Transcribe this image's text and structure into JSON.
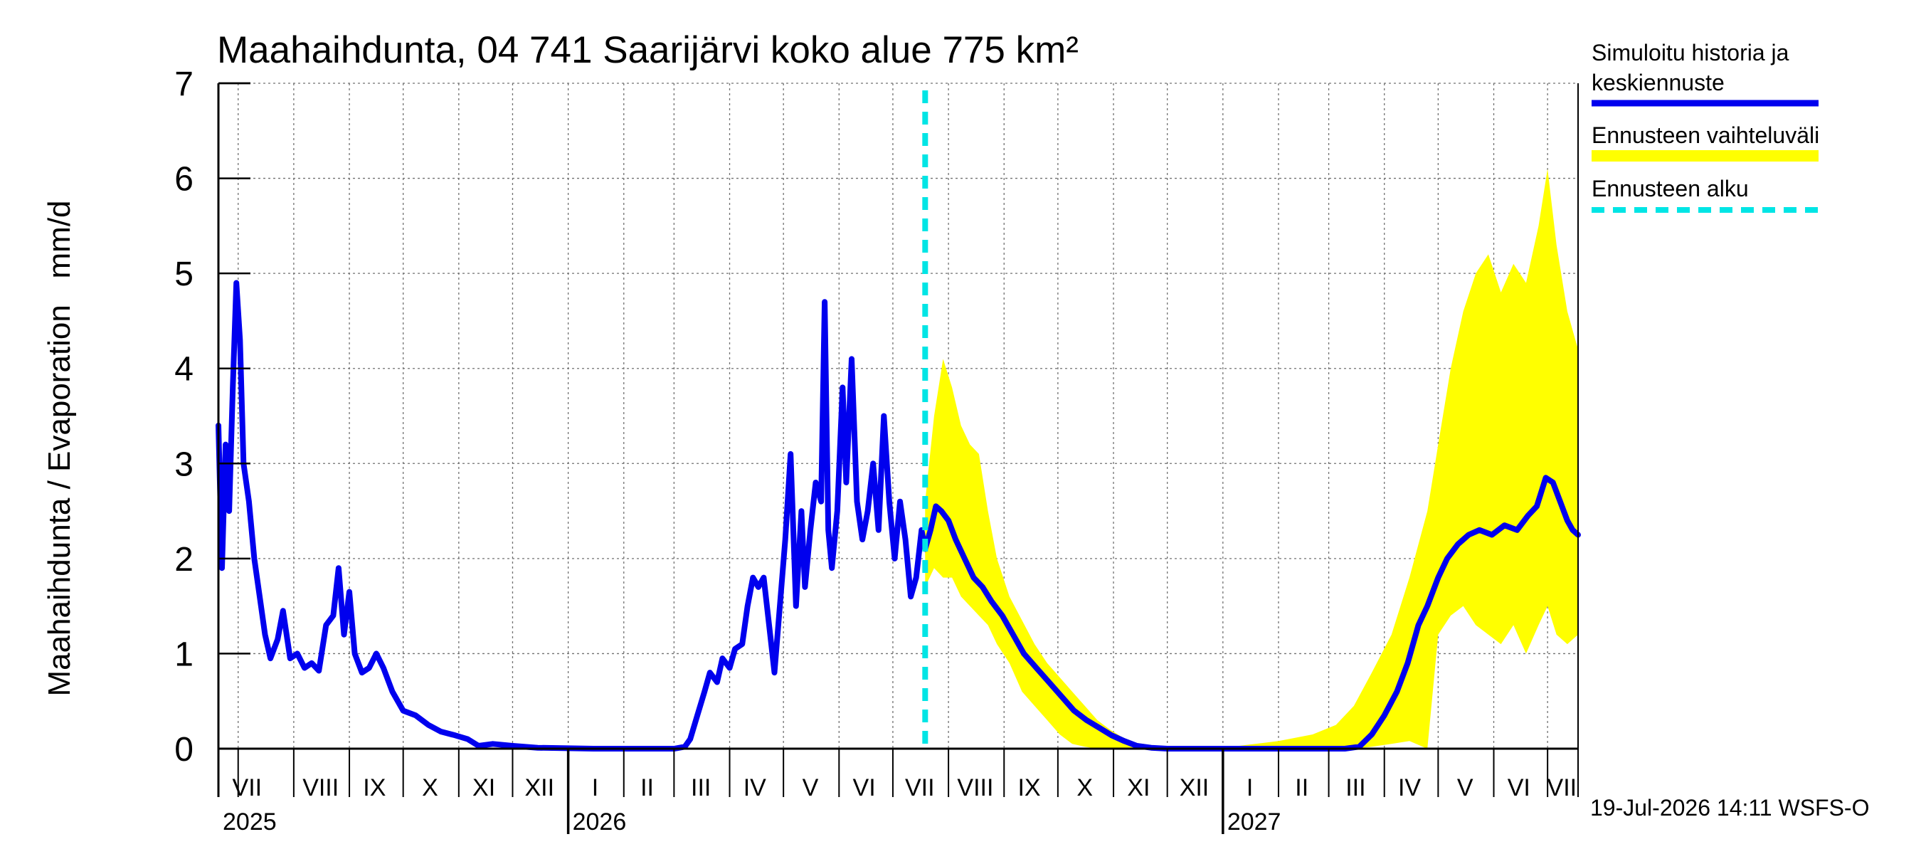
{
  "chart_data": {
    "type": "line",
    "title": "Maahaihdunta, 04 741 Saarijärvi koko alue 775 km²",
    "ylabel": "Maahaihdunta / Evaporation   mm/d",
    "ylim": [
      0,
      7
    ],
    "yticks": [
      "0",
      "1",
      "2",
      "3",
      "4",
      "5",
      "6",
      "7"
    ],
    "xlim": [
      "2025-06-20",
      "2027-07-18"
    ],
    "grid": true,
    "forecast_start": "2026-07-19",
    "months": [
      {
        "label": "VII",
        "mid": "2025-07-06"
      },
      {
        "label": "VIII",
        "mid": "2025-08-16"
      },
      {
        "label": "IX",
        "mid": "2025-09-15"
      },
      {
        "label": "X",
        "mid": "2025-10-16"
      },
      {
        "label": "XI",
        "mid": "2025-11-15"
      },
      {
        "label": "XII",
        "mid": "2025-12-16"
      },
      {
        "label": "I",
        "mid": "2026-01-16"
      },
      {
        "label": "II",
        "mid": "2026-02-14"
      },
      {
        "label": "III",
        "mid": "2026-03-16"
      },
      {
        "label": "IV",
        "mid": "2026-04-15"
      },
      {
        "label": "V",
        "mid": "2026-05-16"
      },
      {
        "label": "VI",
        "mid": "2026-06-15"
      },
      {
        "label": "VII",
        "mid": "2026-07-16"
      },
      {
        "label": "VIII",
        "mid": "2026-08-16"
      },
      {
        "label": "IX",
        "mid": "2026-09-15"
      },
      {
        "label": "X",
        "mid": "2026-10-16"
      },
      {
        "label": "XI",
        "mid": "2026-11-15"
      },
      {
        "label": "XII",
        "mid": "2026-12-16"
      },
      {
        "label": "I",
        "mid": "2027-01-16"
      },
      {
        "label": "II",
        "mid": "2027-02-14"
      },
      {
        "label": "III",
        "mid": "2027-03-16"
      },
      {
        "label": "IV",
        "mid": "2027-04-15"
      },
      {
        "label": "V",
        "mid": "2027-05-16"
      },
      {
        "label": "VI",
        "mid": "2027-06-15"
      },
      {
        "label": "VII",
        "mid": "2027-07-09"
      }
    ],
    "month_boundaries": [
      "2025-07-01",
      "2025-08-01",
      "2025-09-01",
      "2025-10-01",
      "2025-11-01",
      "2025-12-01",
      "2026-01-01",
      "2026-02-01",
      "2026-03-01",
      "2026-04-01",
      "2026-05-01",
      "2026-06-01",
      "2026-07-01",
      "2026-08-01",
      "2026-09-01",
      "2026-10-01",
      "2026-11-01",
      "2026-12-01",
      "2027-01-01",
      "2027-02-01",
      "2027-03-01",
      "2027-04-01",
      "2027-05-01",
      "2027-06-01",
      "2027-07-01"
    ],
    "years": [
      {
        "label": "2025",
        "date": "2025-06-20"
      },
      {
        "label": "2026",
        "date": "2026-01-01"
      },
      {
        "label": "2027",
        "date": "2027-01-01"
      }
    ],
    "series": [
      {
        "name": "Simuloitu historia ja keskiennuste",
        "color": "#0000ee",
        "points": [
          [
            "2025-06-20",
            3.4
          ],
          [
            "2025-06-22",
            1.9
          ],
          [
            "2025-06-24",
            3.2
          ],
          [
            "2025-06-26",
            2.5
          ],
          [
            "2025-06-28",
            3.8
          ],
          [
            "2025-06-30",
            4.9
          ],
          [
            "2025-07-02",
            4.3
          ],
          [
            "2025-07-04",
            3.0
          ],
          [
            "2025-07-07",
            2.6
          ],
          [
            "2025-07-10",
            2.0
          ],
          [
            "2025-07-13",
            1.6
          ],
          [
            "2025-07-16",
            1.2
          ],
          [
            "2025-07-19",
            0.95
          ],
          [
            "2025-07-23",
            1.15
          ],
          [
            "2025-07-26",
            1.45
          ],
          [
            "2025-07-30",
            0.95
          ],
          [
            "2025-08-03",
            1.0
          ],
          [
            "2025-08-07",
            0.85
          ],
          [
            "2025-08-11",
            0.9
          ],
          [
            "2025-08-15",
            0.82
          ],
          [
            "2025-08-19",
            1.3
          ],
          [
            "2025-08-23",
            1.4
          ],
          [
            "2025-08-26",
            1.9
          ],
          [
            "2025-08-29",
            1.2
          ],
          [
            "2025-09-01",
            1.65
          ],
          [
            "2025-09-04",
            1.0
          ],
          [
            "2025-09-08",
            0.8
          ],
          [
            "2025-09-12",
            0.85
          ],
          [
            "2025-09-16",
            1.0
          ],
          [
            "2025-09-20",
            0.85
          ],
          [
            "2025-09-25",
            0.6
          ],
          [
            "2025-10-01",
            0.4
          ],
          [
            "2025-10-08",
            0.35
          ],
          [
            "2025-10-15",
            0.25
          ],
          [
            "2025-10-22",
            0.18
          ],
          [
            "2025-10-30",
            0.14
          ],
          [
            "2025-11-06",
            0.1
          ],
          [
            "2025-11-12",
            0.03
          ],
          [
            "2025-11-20",
            0.05
          ],
          [
            "2025-12-01",
            0.03
          ],
          [
            "2025-12-15",
            0.01
          ],
          [
            "2026-01-15",
            0.0
          ],
          [
            "2026-02-15",
            0.0
          ],
          [
            "2026-03-01",
            0.0
          ],
          [
            "2026-03-07",
            0.02
          ],
          [
            "2026-03-10",
            0.1
          ],
          [
            "2026-03-14",
            0.35
          ],
          [
            "2026-03-18",
            0.6
          ],
          [
            "2026-03-21",
            0.8
          ],
          [
            "2026-03-25",
            0.7
          ],
          [
            "2026-03-28",
            0.95
          ],
          [
            "2026-04-01",
            0.85
          ],
          [
            "2026-04-04",
            1.05
          ],
          [
            "2026-04-08",
            1.1
          ],
          [
            "2026-04-11",
            1.5
          ],
          [
            "2026-04-14",
            1.8
          ],
          [
            "2026-04-17",
            1.7
          ],
          [
            "2026-04-20",
            1.8
          ],
          [
            "2026-04-23",
            1.3
          ],
          [
            "2026-04-26",
            0.8
          ],
          [
            "2026-04-29",
            1.5
          ],
          [
            "2026-05-02",
            2.2
          ],
          [
            "2026-05-05",
            3.1
          ],
          [
            "2026-05-08",
            1.5
          ],
          [
            "2026-05-11",
            2.5
          ],
          [
            "2026-05-13",
            1.7
          ],
          [
            "2026-05-16",
            2.3
          ],
          [
            "2026-05-19",
            2.8
          ],
          [
            "2026-05-22",
            2.6
          ],
          [
            "2026-05-24",
            4.7
          ],
          [
            "2026-05-26",
            2.3
          ],
          [
            "2026-05-28",
            1.9
          ],
          [
            "2026-05-31",
            2.5
          ],
          [
            "2026-06-03",
            3.8
          ],
          [
            "2026-06-05",
            2.8
          ],
          [
            "2026-06-08",
            4.1
          ],
          [
            "2026-06-11",
            2.6
          ],
          [
            "2026-06-14",
            2.2
          ],
          [
            "2026-06-17",
            2.5
          ],
          [
            "2026-06-20",
            3.0
          ],
          [
            "2026-06-23",
            2.3
          ],
          [
            "2026-06-26",
            3.5
          ],
          [
            "2026-06-29",
            2.6
          ],
          [
            "2026-07-02",
            2.0
          ],
          [
            "2026-07-05",
            2.6
          ],
          [
            "2026-07-08",
            2.2
          ],
          [
            "2026-07-11",
            1.6
          ],
          [
            "2026-07-14",
            1.8
          ],
          [
            "2026-07-17",
            2.3
          ],
          [
            "2026-07-19",
            2.1
          ],
          [
            "2026-07-22",
            2.3
          ],
          [
            "2026-07-25",
            2.55
          ],
          [
            "2026-07-28",
            2.5
          ],
          [
            "2026-08-01",
            2.4
          ],
          [
            "2026-08-05",
            2.2
          ],
          [
            "2026-08-10",
            2.0
          ],
          [
            "2026-08-15",
            1.8
          ],
          [
            "2026-08-20",
            1.7
          ],
          [
            "2026-08-25",
            1.55
          ],
          [
            "2026-08-31",
            1.4
          ],
          [
            "2026-09-06",
            1.2
          ],
          [
            "2026-09-12",
            1.0
          ],
          [
            "2026-09-19",
            0.85
          ],
          [
            "2026-09-26",
            0.7
          ],
          [
            "2026-10-03",
            0.55
          ],
          [
            "2026-10-10",
            0.4
          ],
          [
            "2026-10-17",
            0.3
          ],
          [
            "2026-10-24",
            0.22
          ],
          [
            "2026-10-31",
            0.14
          ],
          [
            "2026-11-07",
            0.08
          ],
          [
            "2026-11-14",
            0.03
          ],
          [
            "2026-11-22",
            0.01
          ],
          [
            "2026-12-01",
            0.0
          ],
          [
            "2027-01-15",
            0.0
          ],
          [
            "2027-02-15",
            0.0
          ],
          [
            "2027-03-10",
            0.0
          ],
          [
            "2027-03-18",
            0.02
          ],
          [
            "2027-03-25",
            0.15
          ],
          [
            "2027-04-01",
            0.35
          ],
          [
            "2027-04-08",
            0.6
          ],
          [
            "2027-04-14",
            0.9
          ],
          [
            "2027-04-20",
            1.3
          ],
          [
            "2027-04-25",
            1.5
          ],
          [
            "2027-05-01",
            1.8
          ],
          [
            "2027-05-06",
            2.0
          ],
          [
            "2027-05-12",
            2.15
          ],
          [
            "2027-05-18",
            2.25
          ],
          [
            "2027-05-24",
            2.3
          ],
          [
            "2027-05-31",
            2.25
          ],
          [
            "2027-06-07",
            2.35
          ],
          [
            "2027-06-14",
            2.3
          ],
          [
            "2027-06-20",
            2.45
          ],
          [
            "2027-06-25",
            2.55
          ],
          [
            "2027-06-30",
            2.85
          ],
          [
            "2027-07-04",
            2.8
          ],
          [
            "2027-07-08",
            2.6
          ],
          [
            "2027-07-12",
            2.4
          ],
          [
            "2027-07-15",
            2.3
          ],
          [
            "2027-07-18",
            2.25
          ]
        ]
      },
      {
        "name": "Ennusteen vaihteluväli",
        "color": "#ffff00",
        "points": [
          [
            "2026-07-19",
            1.7,
            2.6
          ],
          [
            "2026-07-24",
            1.9,
            3.5
          ],
          [
            "2026-07-29",
            1.8,
            4.1
          ],
          [
            "2026-08-03",
            1.8,
            3.8
          ],
          [
            "2026-08-08",
            1.6,
            3.4
          ],
          [
            "2026-08-13",
            1.5,
            3.2
          ],
          [
            "2026-08-18",
            1.4,
            3.1
          ],
          [
            "2026-08-23",
            1.3,
            2.5
          ],
          [
            "2026-08-28",
            1.1,
            2.0
          ],
          [
            "2026-09-04",
            0.9,
            1.6
          ],
          [
            "2026-09-11",
            0.6,
            1.35
          ],
          [
            "2026-09-18",
            0.45,
            1.1
          ],
          [
            "2026-09-25",
            0.3,
            0.9
          ],
          [
            "2026-10-02",
            0.15,
            0.75
          ],
          [
            "2026-10-09",
            0.05,
            0.6
          ],
          [
            "2026-10-16",
            0.02,
            0.45
          ],
          [
            "2026-10-23",
            0.0,
            0.3
          ],
          [
            "2026-10-30",
            0.0,
            0.2
          ],
          [
            "2026-11-06",
            0.0,
            0.12
          ],
          [
            "2026-11-14",
            0.0,
            0.06
          ],
          [
            "2026-11-25",
            0.0,
            0.03
          ],
          [
            "2026-12-10",
            0.0,
            0.02
          ],
          [
            "2027-01-10",
            0.0,
            0.03
          ],
          [
            "2027-02-01",
            0.0,
            0.08
          ],
          [
            "2027-02-20",
            0.0,
            0.15
          ],
          [
            "2027-03-05",
            0.0,
            0.25
          ],
          [
            "2027-03-15",
            0.0,
            0.45
          ],
          [
            "2027-03-25",
            0.02,
            0.8
          ],
          [
            "2027-04-05",
            0.05,
            1.2
          ],
          [
            "2027-04-15",
            0.08,
            1.8
          ],
          [
            "2027-04-25",
            0.0,
            2.5
          ],
          [
            "2027-05-01",
            1.2,
            3.2
          ],
          [
            "2027-05-08",
            1.4,
            4.0
          ],
          [
            "2027-05-15",
            1.5,
            4.6
          ],
          [
            "2027-05-22",
            1.3,
            5.0
          ],
          [
            "2027-05-29",
            1.2,
            5.2
          ],
          [
            "2027-06-05",
            1.1,
            4.8
          ],
          [
            "2027-06-12",
            1.3,
            5.1
          ],
          [
            "2027-06-19",
            1.0,
            4.9
          ],
          [
            "2027-06-26",
            1.3,
            5.5
          ],
          [
            "2027-07-01",
            1.5,
            6.1
          ],
          [
            "2027-07-06",
            1.2,
            5.3
          ],
          [
            "2027-07-12",
            1.1,
            4.6
          ],
          [
            "2027-07-18",
            1.2,
            4.2
          ]
        ]
      },
      {
        "name": "Ennusteen alku",
        "color": "#00e5e5"
      }
    ],
    "legend_position": "right"
  },
  "legend": {
    "items": [
      {
        "line1": "Simuloitu historia ja",
        "line2": "keskiennuste",
        "color": "#0000ee",
        "style": "solid"
      },
      {
        "line1": "Ennusteen vaihteluväli",
        "line2": "",
        "color": "#ffff00",
        "style": "solid"
      },
      {
        "line1": "Ennusteen alku",
        "line2": "",
        "color": "#00e5e5",
        "style": "dashed"
      }
    ]
  },
  "footer": "19-Jul-2026 14:11 WSFS-O"
}
